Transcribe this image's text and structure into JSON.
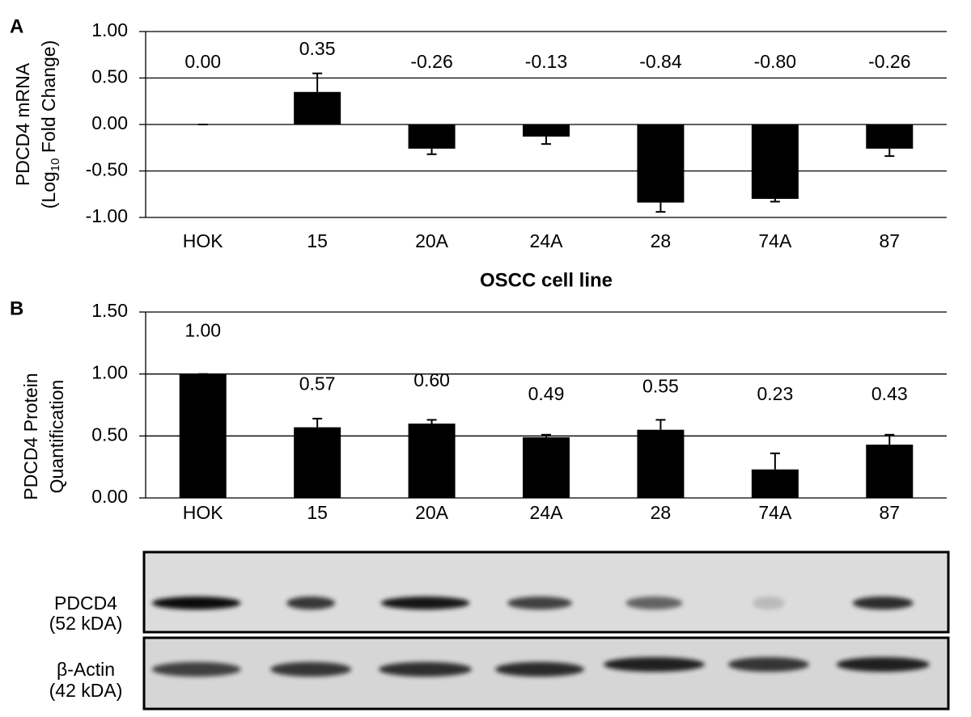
{
  "chart_data": [
    {
      "type": "bar",
      "panel": "A",
      "ylabel": {
        "line1": "PDCD4 mRNA",
        "line2": {
          "before": "(Log",
          "sub": "10",
          "after": " Fold Change)"
        }
      },
      "xlabel": "OSCC cell line",
      "categories": [
        "HOK",
        "15",
        "20A",
        "24A",
        "28",
        "74A",
        "87"
      ],
      "values": [
        0,
        0.35,
        -0.26,
        -0.13,
        -0.84,
        -0.8,
        -0.26
      ],
      "value_labels": [
        "0.00",
        "0.35",
        "-0.26",
        "-0.13",
        "-0.84",
        "-0.80",
        "-0.26"
      ],
      "errors": [
        0,
        0.2,
        0.06,
        0.08,
        0.1,
        0.03,
        0.08
      ],
      "color": "#000000",
      "ylim": [
        -1,
        1
      ],
      "yticks": [
        {
          "value": -1,
          "label": "-1.00"
        },
        {
          "value": -0.5,
          "label": "-0.50"
        },
        {
          "value": 0,
          "label": "0.00"
        },
        {
          "value": 0.5,
          "label": "0.50"
        },
        {
          "value": 1,
          "label": "1.00"
        }
      ],
      "grid": true
    },
    {
      "type": "bar",
      "panel": "B",
      "ylabel": {
        "line1": "PDCD4 Protein",
        "line2": "Quantification"
      },
      "categories": [
        "HOK",
        "15",
        "20A",
        "24A",
        "28",
        "74A",
        "87"
      ],
      "values": [
        1,
        0.57,
        0.6,
        0.49,
        0.55,
        0.23,
        0.43
      ],
      "value_labels": [
        "1.00",
        "0.57",
        "0.60",
        "0.49",
        "0.55",
        "0.23",
        "0.43"
      ],
      "errors": [
        0,
        0.07,
        0.03,
        0.02,
        0.08,
        0.13,
        0.08
      ],
      "color": "#000000",
      "ylim": [
        0,
        1.5
      ],
      "yticks": [
        {
          "value": 0,
          "label": "0.00"
        },
        {
          "value": 0.5,
          "label": "0.50"
        },
        {
          "value": 1,
          "label": "1.00"
        },
        {
          "value": 1.5,
          "label": "1.50"
        }
      ],
      "grid": true
    }
  ],
  "blot": {
    "rows": [
      {
        "name": "PDCD4",
        "size": "(52 kDA)"
      },
      {
        "name": "β-Actin",
        "size": "(42 kDA)"
      }
    ]
  }
}
